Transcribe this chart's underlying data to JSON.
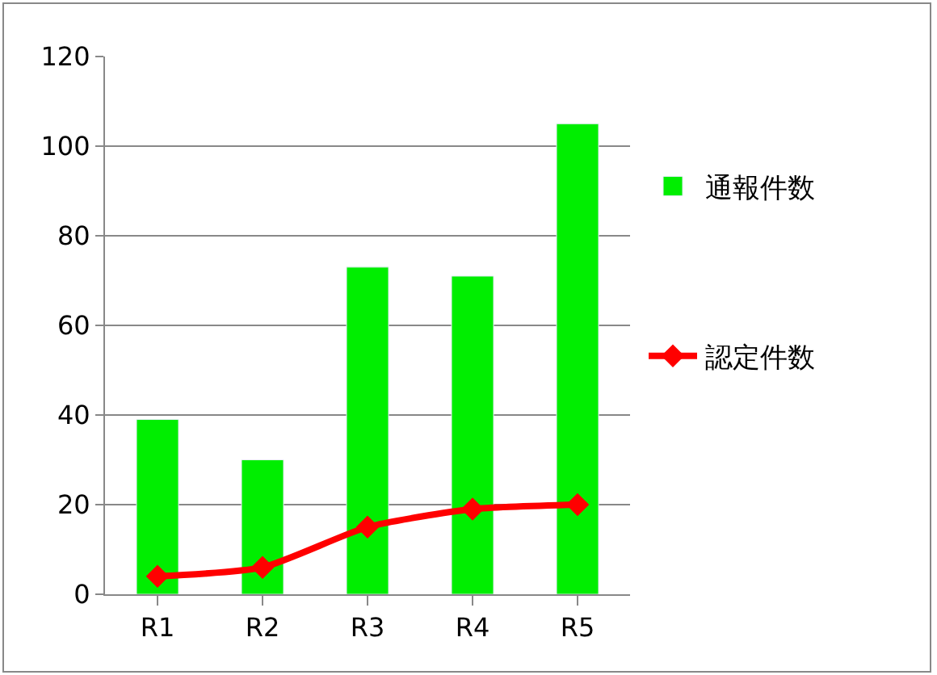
{
  "chart_data": {
    "type": "bar",
    "categories": [
      "R1",
      "R2",
      "R3",
      "R4",
      "R5"
    ],
    "series": [
      {
        "name": "通報件数",
        "color": "#00ee00",
        "values": [
          39,
          30,
          73,
          71,
          105
        ]
      },
      {
        "name": "認定件数",
        "type": "line",
        "color": "#ff0000",
        "values": [
          4,
          6,
          15,
          19,
          20
        ],
        "marker": "diamond"
      }
    ],
    "ylim": [
      0,
      120
    ],
    "yticks": [
      0,
      20,
      40,
      60,
      80,
      100,
      120
    ],
    "grid": "y",
    "legend": "right"
  }
}
